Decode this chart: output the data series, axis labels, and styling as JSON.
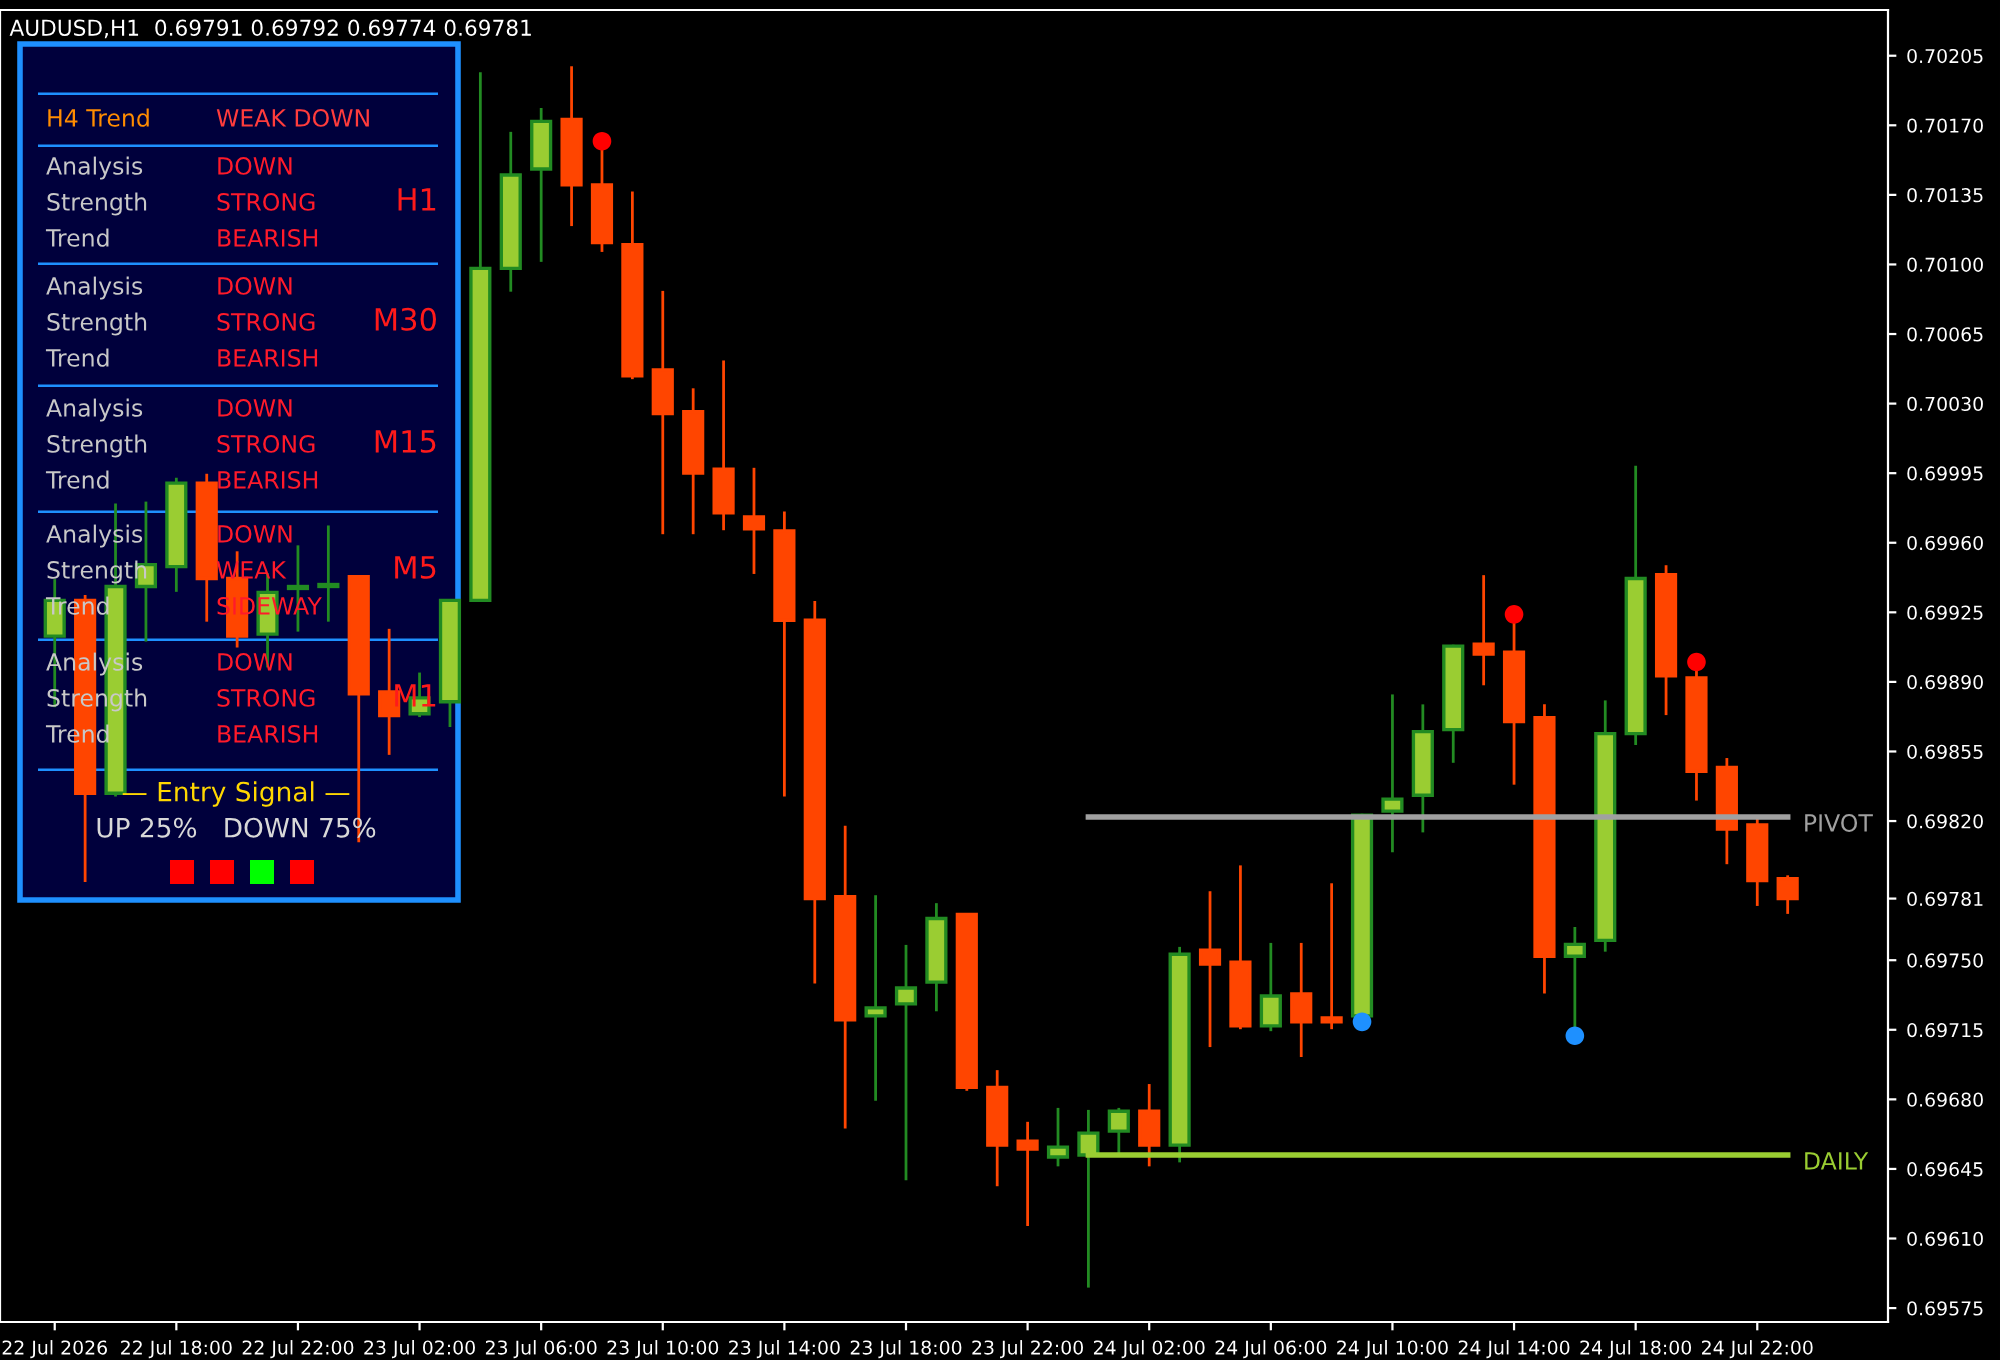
{
  "chart_data": {
    "type": "candlestick",
    "title": "AUDUSD,H1  0.69791 0.69792 0.69774 0.69781",
    "categories": [
      "22 Jul 2026",
      null,
      null,
      null,
      "22 Jul 18:00",
      null,
      null,
      null,
      "22 Jul 22:00",
      null,
      null,
      null,
      "23 Jul 02:00",
      null,
      null,
      null,
      "23 Jul 06:00",
      null,
      null,
      null,
      "23 Jul 10:00",
      null,
      null,
      null,
      "23 Jul 14:00",
      null,
      null,
      null,
      "23 Jul 18:00",
      null,
      null,
      null,
      "23 Jul 22:00",
      null,
      null,
      null,
      "24 Jul 02:00",
      null,
      null,
      null,
      "24 Jul 06:00",
      null,
      null,
      null,
      "24 Jul 10:00",
      null,
      null,
      null,
      "24 Jul 14:00",
      null,
      null,
      null,
      "24 Jul 18:00",
      null,
      null,
      null,
      "24 Jul 22:00",
      null
    ],
    "ohlc": [
      [
        0.69913,
        0.69941,
        0.69878,
        0.69931
      ],
      [
        0.69931,
        0.69933,
        0.6979,
        0.69834
      ],
      [
        0.69834,
        0.69979,
        0.69833,
        0.69938
      ],
      [
        0.69938,
        0.6998,
        0.69911,
        0.69949
      ],
      [
        0.69948,
        0.69992,
        0.69936,
        0.6999
      ],
      [
        0.6999,
        0.69994,
        0.69921,
        0.69942
      ],
      [
        0.69942,
        0.69955,
        0.69908,
        0.69913
      ],
      [
        0.69914,
        0.69944,
        0.69898,
        0.69935
      ],
      [
        0.69937,
        0.69958,
        0.69916,
        0.69938
      ],
      [
        0.69938,
        0.69968,
        0.69921,
        0.69939
      ],
      [
        0.69943,
        0.69943,
        0.6981,
        0.69884
      ],
      [
        0.69885,
        0.69916,
        0.69854,
        0.69873
      ],
      [
        0.69874,
        0.69894,
        0.69873,
        0.69882
      ],
      [
        0.6988,
        0.69931,
        0.69868,
        0.69931
      ],
      [
        0.69931,
        0.70196,
        0.69931,
        0.70098
      ],
      [
        0.70098,
        0.70166,
        0.70087,
        0.70145
      ],
      [
        0.70148,
        0.70178,
        0.70102,
        0.70172
      ],
      [
        0.70173,
        0.70199,
        0.7012,
        0.7014
      ],
      [
        0.7014,
        0.70158,
        0.70107,
        0.70111
      ],
      [
        0.7011,
        0.70136,
        0.70043,
        0.70044
      ],
      [
        0.70047,
        0.70086,
        0.69965,
        0.70025
      ],
      [
        0.70026,
        0.70037,
        0.69965,
        0.69995
      ],
      [
        0.69997,
        0.70051,
        0.69967,
        0.69975
      ],
      [
        0.69973,
        0.69997,
        0.69945,
        0.69967
      ],
      [
        0.69966,
        0.69975,
        0.69833,
        0.69921
      ],
      [
        0.69921,
        0.6993,
        0.69739,
        0.69781
      ],
      [
        0.69782,
        0.69817,
        0.69666,
        0.6972
      ],
      [
        0.69722,
        0.69782,
        0.6968,
        0.69726
      ],
      [
        0.69728,
        0.69757,
        0.6964,
        0.69736
      ],
      [
        0.69739,
        0.69778,
        0.69725,
        0.69771
      ],
      [
        0.69773,
        0.69773,
        0.69685,
        0.69686
      ],
      [
        0.69686,
        0.69694,
        0.69637,
        0.69657
      ],
      [
        0.69659,
        0.69668,
        0.69617,
        0.69655
      ],
      [
        0.69651,
        0.69675,
        0.69647,
        0.69656
      ],
      [
        0.69652,
        0.69674,
        0.69586,
        0.69663
      ],
      [
        0.69664,
        0.69675,
        0.69652,
        0.69674
      ],
      [
        0.69674,
        0.69687,
        0.69647,
        0.69657
      ],
      [
        0.69657,
        0.69756,
        0.69649,
        0.69753
      ],
      [
        0.69755,
        0.69784,
        0.69707,
        0.69748
      ],
      [
        0.69749,
        0.69797,
        0.69716,
        0.69717
      ],
      [
        0.69717,
        0.69758,
        0.69715,
        0.69732
      ],
      [
        0.69733,
        0.69758,
        0.69702,
        0.69719
      ],
      [
        0.69721,
        0.69788,
        0.69716,
        0.69719
      ],
      [
        0.69722,
        0.69823,
        0.6972,
        0.69823
      ],
      [
        0.69825,
        0.69883,
        0.69805,
        0.69831
      ],
      [
        0.69833,
        0.69878,
        0.69815,
        0.69865
      ],
      [
        0.69866,
        0.69908,
        0.6985,
        0.69908
      ],
      [
        0.69909,
        0.69943,
        0.69889,
        0.69904
      ],
      [
        0.69905,
        0.6992,
        0.69839,
        0.6987
      ],
      [
        0.69872,
        0.69878,
        0.69734,
        0.69752
      ],
      [
        0.69752,
        0.69766,
        0.69715,
        0.69758
      ],
      [
        0.6976,
        0.6988,
        0.69755,
        0.69864
      ],
      [
        0.69864,
        0.69998,
        0.69859,
        0.69942
      ],
      [
        0.69944,
        0.69948,
        0.69874,
        0.69893
      ],
      [
        0.69892,
        0.69896,
        0.69831,
        0.69845
      ],
      [
        0.69847,
        0.69851,
        0.69799,
        0.69816
      ],
      [
        0.69818,
        0.69821,
        0.69778,
        0.6979
      ],
      [
        0.69791,
        0.69792,
        0.69774,
        0.69781
      ]
    ],
    "colors": [
      "#9acd32",
      "#ff4500",
      "#9acd32",
      "#9acd32",
      "#9acd32",
      "#ff4500",
      "#ff4500",
      "#9acd32",
      "#9acd32",
      "#9acd32",
      "#ff4500",
      "#ff4500",
      "#9acd32",
      "#9acd32",
      "#9acd32",
      "#9acd32",
      "#9acd32",
      "#ff4500",
      "#ff4500",
      "#ff4500",
      "#ff4500",
      "#ff4500",
      "#ff4500",
      "#ff4500",
      "#ff4500",
      "#ff4500",
      "#ff4500",
      "#9acd32",
      "#9acd32",
      "#9acd32",
      "#ff4500",
      "#ff4500",
      "#ff4500",
      "#9acd32",
      "#9acd32",
      "#9acd32",
      "#ff4500",
      "#9acd32",
      "#ff4500",
      "#ff4500",
      "#9acd32",
      "#ff4500",
      "#ff4500",
      "#9acd32",
      "#9acd32",
      "#9acd32",
      "#9acd32",
      "#ff4500",
      "#ff4500",
      "#ff4500",
      "#9acd32",
      "#9acd32",
      "#9acd32",
      "#ff4500",
      "#ff4500",
      "#ff4500",
      "#ff4500",
      "#ff4500"
    ],
    "series": [
      {
        "type": "line",
        "name": "PIVOT",
        "color": "#a0a0a0",
        "values": [
          null,
          null,
          null,
          null,
          null,
          null,
          null,
          null,
          null,
          null,
          null,
          null,
          null,
          null,
          null,
          null,
          null,
          null,
          null,
          null,
          null,
          null,
          null,
          null,
          null,
          null,
          null,
          null,
          null,
          null,
          null,
          null,
          null,
          null,
          0.69822,
          0.69822,
          0.69822,
          0.69822,
          0.69822,
          0.69822,
          0.69822,
          0.69822,
          0.69822,
          0.69822,
          0.69822,
          0.69822,
          0.69822,
          0.69822,
          0.69822,
          0.69822,
          0.69822,
          0.69822,
          0.69822,
          0.69822,
          0.69822,
          0.69822,
          0.69822,
          0.69822
        ]
      },
      {
        "type": "line",
        "name": "DAILY",
        "color": "#9acd32",
        "values": [
          null,
          null,
          null,
          null,
          null,
          null,
          null,
          null,
          null,
          null,
          null,
          null,
          null,
          null,
          null,
          null,
          null,
          null,
          null,
          null,
          null,
          null,
          null,
          null,
          null,
          null,
          null,
          null,
          null,
          null,
          null,
          null,
          null,
          null,
          0.69652,
          0.69652,
          0.69652,
          0.69652,
          0.69652,
          0.69652,
          0.69652,
          0.69652,
          0.69652,
          0.69652,
          0.69652,
          0.69652,
          0.69652,
          0.69652,
          0.69652,
          0.69652,
          0.69652,
          0.69652,
          0.69652,
          0.69652,
          0.69652,
          0.69652,
          0.69652,
          0.69652
        ]
      },
      {
        "type": "scatter",
        "color": "#ff0000",
        "values": [
          null,
          null,
          null,
          null,
          null,
          null,
          null,
          null,
          null,
          null,
          null,
          null,
          null,
          null,
          null,
          null,
          null,
          null,
          0.70162,
          null,
          null,
          null,
          null,
          null,
          null,
          null,
          null,
          null,
          null,
          null,
          null,
          null,
          null,
          null,
          null,
          null,
          null,
          null,
          null,
          null,
          null,
          null,
          null,
          null,
          null,
          null,
          null,
          null,
          0.69924,
          null,
          null,
          null,
          null,
          null,
          0.699,
          null,
          null,
          null
        ]
      },
      {
        "type": "scatter",
        "color": "#1e90ff",
        "values": [
          null,
          null,
          null,
          null,
          null,
          null,
          null,
          null,
          null,
          null,
          null,
          null,
          null,
          null,
          null,
          null,
          null,
          null,
          null,
          null,
          null,
          null,
          null,
          null,
          null,
          null,
          null,
          null,
          null,
          null,
          null,
          null,
          null,
          null,
          null,
          null,
          null,
          null,
          null,
          null,
          null,
          null,
          null,
          0.69719,
          null,
          null,
          null,
          null,
          null,
          null,
          0.69712,
          null,
          null,
          null,
          null,
          null,
          null,
          null
        ]
      }
    ],
    "ylim": [
      0.69568,
      0.70228
    ],
    "yticks": [
      {
        "value": 0.69575,
        "label": "0.69575"
      },
      {
        "value": 0.6961,
        "label": "0.69610"
      },
      0.69645,
      {
        "value": 0.6968,
        "label": "0.69680"
      },
      0.69715,
      {
        "value": 0.6975,
        "label": "0.69750"
      },
      0.69781,
      {
        "value": 0.6982,
        "label": "0.69820"
      },
      0.69855,
      {
        "value": 0.6989,
        "label": "0.69890"
      },
      0.69925,
      {
        "value": 0.6996,
        "label": "0.69960"
      },
      0.69995,
      {
        "value": 0.7003,
        "label": "0.70030"
      },
      0.70065,
      {
        "value": 0.701,
        "label": "0.70100"
      },
      0.70135,
      {
        "value": 0.7017,
        "label": "0.70170"
      },
      0.70205
    ],
    "annotations": [
      "H4 Trend",
      "WEAK DOWN",
      "Analysis",
      "DOWN",
      "Strength",
      "STRONG",
      "H1",
      "Trend",
      "BEARISH",
      "Analysis",
      "DOWN",
      "Strength",
      "STRONG",
      "M30",
      "Trend",
      "BEARISH",
      "Analysis",
      "DOWN",
      "Strength",
      "STRONG",
      "M15",
      "Trend",
      "BEARISH",
      "Analysis",
      "DOWN",
      "Strength",
      "WEAK",
      "M5",
      "Trend",
      "SIDEWAY",
      "Analysis",
      "DOWN",
      "Strength",
      "STRONG",
      "M1",
      "Trend",
      "BEARISH",
      "— Entry Signal —",
      "UP 25%   DOWN 75%"
    ]
  }
}
